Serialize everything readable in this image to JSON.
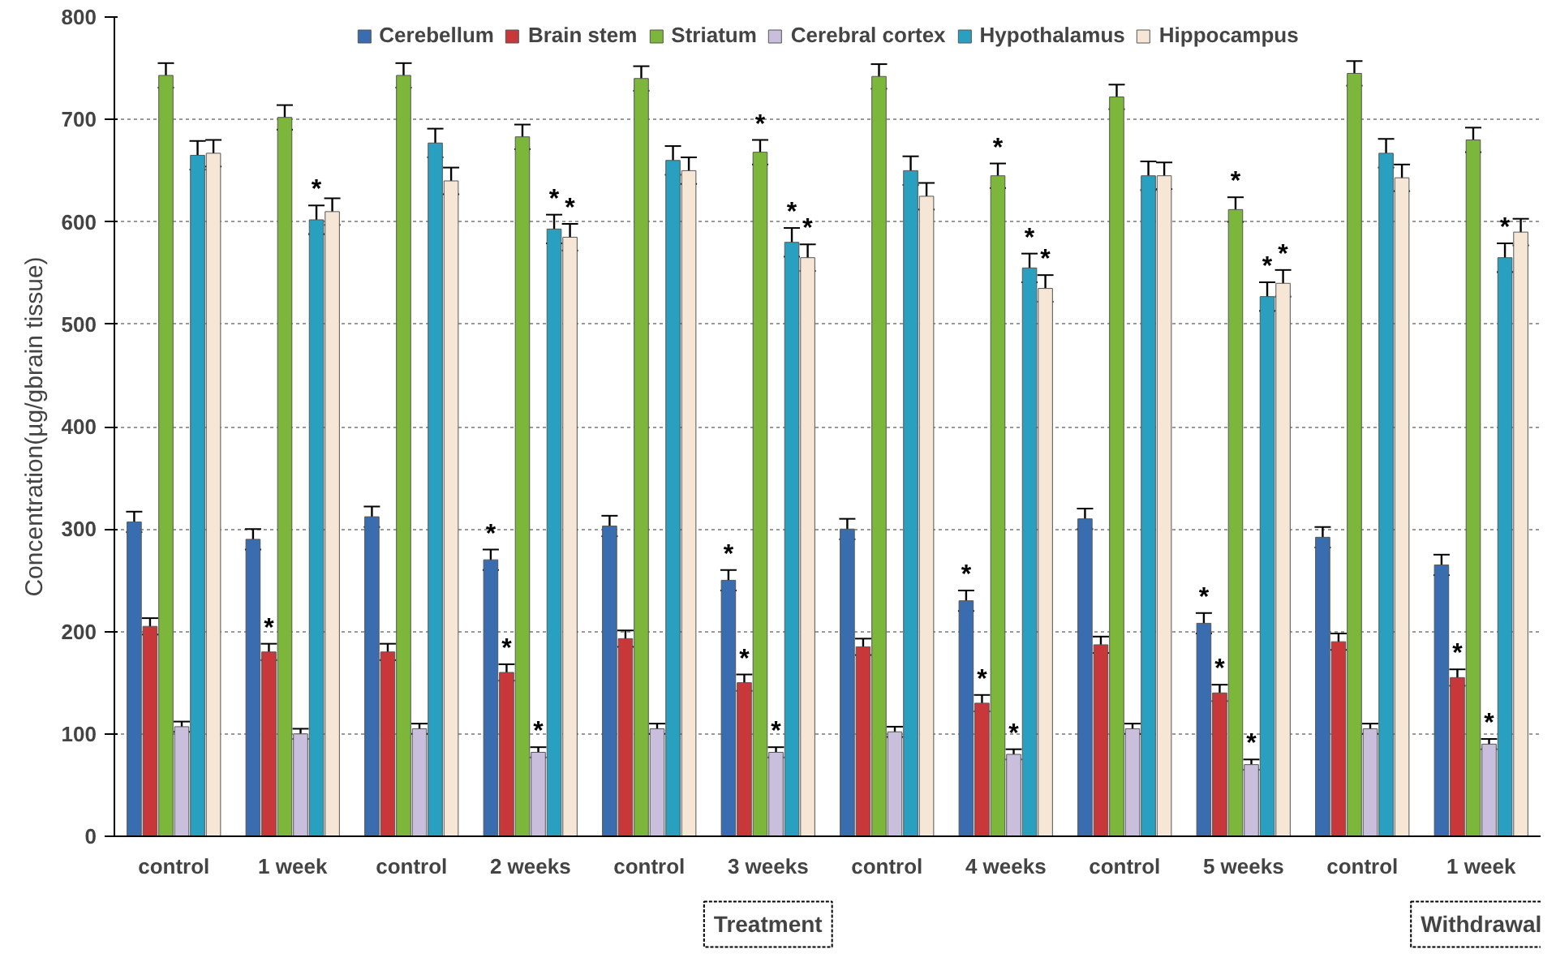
{
  "chart_data": {
    "type": "bar",
    "ylabel": "Concentration(µg/gbrain tissue)",
    "categories": [
      "control",
      "1 week",
      "control",
      "2 weeks",
      "control",
      "3 weeks",
      "control",
      "4 weeks",
      "control",
      "5 weeks",
      "control",
      "1 week"
    ],
    "series": [
      {
        "name": "Cerebellum",
        "color": "#3a6db0",
        "values": [
          307,
          290,
          312,
          270,
          303,
          250,
          300,
          230,
          310,
          208,
          292,
          265
        ],
        "errors": [
          10,
          10,
          10,
          10,
          10,
          10,
          10,
          10,
          10,
          10,
          10,
          10
        ],
        "value_labels": [
          null,
          null,
          null,
          "*",
          null,
          "*",
          null,
          "*",
          null,
          "*",
          null,
          null
        ]
      },
      {
        "name": "Brain stem",
        "color": "#c8383a",
        "values": [
          205,
          180,
          180,
          160,
          193,
          150,
          185,
          130,
          187,
          140,
          190,
          155
        ],
        "errors": [
          8,
          8,
          8,
          8,
          8,
          8,
          8,
          8,
          8,
          8,
          8,
          8
        ],
        "value_labels": [
          null,
          "*",
          null,
          "*",
          null,
          "*",
          null,
          "*",
          null,
          "*",
          null,
          "*"
        ]
      },
      {
        "name": "Striatum",
        "color": "#7cb63a",
        "values": [
          743,
          702,
          743,
          683,
          740,
          668,
          742,
          645,
          722,
          612,
          745,
          680
        ],
        "errors": [
          12,
          12,
          12,
          12,
          12,
          12,
          12,
          12,
          12,
          12,
          12,
          12
        ],
        "value_labels": [
          null,
          null,
          null,
          null,
          null,
          "*",
          null,
          "*",
          null,
          "*",
          null,
          null
        ]
      },
      {
        "name": "Cerebral cortex",
        "color": "#c9bfdc",
        "values": [
          107,
          100,
          105,
          82,
          105,
          82,
          102,
          80,
          105,
          70,
          105,
          90
        ],
        "errors": [
          5,
          5,
          5,
          5,
          5,
          5,
          5,
          5,
          5,
          5,
          5,
          5
        ],
        "value_labels": [
          null,
          null,
          null,
          "*",
          null,
          "*",
          null,
          "*",
          null,
          "*",
          null,
          "*"
        ]
      },
      {
        "name": "Hypothalamus",
        "color": "#2aa0c0",
        "values": [
          665,
          602,
          677,
          593,
          660,
          580,
          650,
          555,
          645,
          527,
          667,
          565
        ],
        "errors": [
          14,
          14,
          14,
          14,
          14,
          14,
          14,
          14,
          14,
          14,
          14,
          14
        ],
        "value_labels": [
          null,
          "*",
          null,
          "*",
          null,
          "*",
          null,
          "*",
          null,
          "*",
          null,
          "*"
        ]
      },
      {
        "name": "Hippocampus",
        "color": "#f5e6d6",
        "values": [
          667,
          610,
          640,
          585,
          650,
          565,
          625,
          535,
          645,
          540,
          643,
          590
        ],
        "errors": [
          13,
          13,
          13,
          13,
          13,
          13,
          13,
          13,
          13,
          13,
          13,
          13
        ],
        "value_labels": [
          null,
          null,
          null,
          "*",
          null,
          "*",
          null,
          "*",
          null,
          "*",
          null,
          null
        ]
      }
    ],
    "ylim": [
      0,
      800
    ],
    "yticks": [
      0,
      100,
      200,
      300,
      400,
      500,
      600,
      700,
      800
    ],
    "grid": "y",
    "legend": "top",
    "annotations": [
      "Treatment",
      "Withdrawal"
    ]
  }
}
